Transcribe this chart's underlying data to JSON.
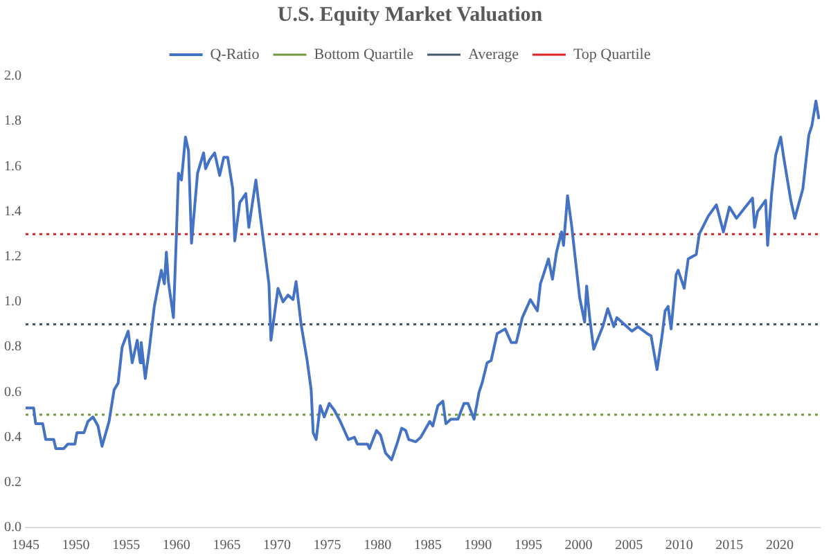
{
  "chart_data": {
    "type": "line",
    "title": "U.S. Equity Market Valuation",
    "legend": "top",
    "grid": false,
    "marker": "none",
    "line_style": "solid",
    "xlim": [
      1945,
      2024
    ],
    "xticks": [
      1945,
      1950,
      1955,
      1960,
      1965,
      1970,
      1975,
      1980,
      1985,
      1990,
      1995,
      2000,
      2005,
      2010,
      2015,
      2020
    ],
    "ylim": [
      0,
      2
    ],
    "yticks": [
      {
        "value": 0,
        "label": "0.0"
      },
      {
        "value": 0.2,
        "label": "0.2"
      },
      {
        "value": 0.4,
        "label": "0.4"
      },
      {
        "value": 0.6,
        "label": "0.6"
      },
      {
        "value": 0.8,
        "label": "0.8"
      },
      {
        "value": 1,
        "label": "1.0"
      },
      {
        "value": 1.2,
        "label": "1.2"
      },
      {
        "value": 1.4,
        "label": "1.4"
      },
      {
        "value": 1.6,
        "label": "1.6"
      },
      {
        "value": 1.8,
        "label": "1.8"
      },
      {
        "value": 2,
        "label": "2.0"
      }
    ],
    "series": [
      {
        "name": "Q-Ratio",
        "color": "#4472c4",
        "x": [
          1945.0,
          1945.8,
          1946.0,
          1946.7,
          1947.0,
          1947.8,
          1948.0,
          1948.8,
          1949.2,
          1949.9,
          1950.1,
          1950.8,
          1951.2,
          1951.7,
          1952.2,
          1952.6,
          1953.3,
          1953.8,
          1954.2,
          1954.6,
          1955.2,
          1955.6,
          1956.1,
          1956.4,
          1956.5,
          1956.9,
          1957.3,
          1957.8,
          1958.1,
          1958.5,
          1958.8,
          1959.0,
          1959.2,
          1959.7,
          1960.0,
          1960.2,
          1960.5,
          1960.9,
          1961.2,
          1961.5,
          1962.1,
          1962.7,
          1962.9,
          1963.3,
          1963.8,
          1964.3,
          1964.7,
          1965.1,
          1965.6,
          1965.8,
          1966.3,
          1966.9,
          1967.2,
          1967.5,
          1967.9,
          1968.4,
          1969.2,
          1969.4,
          1970.1,
          1970.6,
          1971.1,
          1971.6,
          1971.9,
          1972.4,
          1973.0,
          1973.4,
          1973.6,
          1973.9,
          1974.3,
          1974.7,
          1975.2,
          1975.7,
          1976.3,
          1977.1,
          1977.7,
          1978.0,
          1979.0,
          1979.2,
          1979.9,
          1980.3,
          1980.8,
          1981.4,
          1982.0,
          1982.4,
          1982.8,
          1983.1,
          1983.8,
          1984.3,
          1985.2,
          1985.5,
          1986.0,
          1986.5,
          1986.8,
          1987.3,
          1988.0,
          1988.6,
          1989.0,
          1989.6,
          1990.1,
          1990.4,
          1990.9,
          1991.3,
          1991.9,
          1992.7,
          1993.3,
          1993.8,
          1994.4,
          1995.2,
          1995.9,
          1996.2,
          1996.5,
          1997.0,
          1997.4,
          1997.8,
          1998.3,
          1998.5,
          1998.9,
          1999.3,
          2000.1,
          2000.6,
          2000.8,
          2001.1,
          2001.5,
          2002.4,
          2002.9,
          2003.5,
          2003.8,
          2004.8,
          2005.3,
          2005.9,
          2006.8,
          2007.2,
          2007.8,
          2008.3,
          2008.6,
          2008.9,
          2009.2,
          2009.7,
          2009.9,
          2010.5,
          2010.9,
          2011.7,
          2012.0,
          2012.9,
          2013.7,
          2014.4,
          2015.0,
          2015.7,
          2017.3,
          2017.5,
          2017.8,
          2018.6,
          2018.8,
          2019.2,
          2019.6,
          2020.1,
          2020.4,
          2021.1,
          2021.5,
          2022.3,
          2022.9,
          2023.2,
          2023.6,
          2023.9
        ],
        "values": [
          0.53,
          0.53,
          0.46,
          0.46,
          0.39,
          0.39,
          0.35,
          0.35,
          0.37,
          0.37,
          0.42,
          0.42,
          0.47,
          0.49,
          0.45,
          0.36,
          0.47,
          0.61,
          0.64,
          0.8,
          0.87,
          0.73,
          0.83,
          0.73,
          0.82,
          0.66,
          0.79,
          0.98,
          1.05,
          1.14,
          1.08,
          1.22,
          1.09,
          0.93,
          1.3,
          1.57,
          1.54,
          1.73,
          1.67,
          1.26,
          1.57,
          1.66,
          1.59,
          1.63,
          1.66,
          1.56,
          1.64,
          1.64,
          1.5,
          1.27,
          1.44,
          1.48,
          1.33,
          1.42,
          1.54,
          1.36,
          1.08,
          0.83,
          1.06,
          1.0,
          1.03,
          1.01,
          1.09,
          0.9,
          0.74,
          0.61,
          0.42,
          0.39,
          0.54,
          0.49,
          0.55,
          0.52,
          0.47,
          0.39,
          0.4,
          0.37,
          0.37,
          0.35,
          0.43,
          0.41,
          0.33,
          0.3,
          0.38,
          0.44,
          0.43,
          0.39,
          0.38,
          0.4,
          0.47,
          0.45,
          0.54,
          0.56,
          0.46,
          0.48,
          0.48,
          0.55,
          0.55,
          0.48,
          0.6,
          0.64,
          0.73,
          0.74,
          0.86,
          0.88,
          0.82,
          0.82,
          0.93,
          1.01,
          0.96,
          1.08,
          1.12,
          1.19,
          1.1,
          1.22,
          1.31,
          1.25,
          1.47,
          1.34,
          1.02,
          0.91,
          1.07,
          0.93,
          0.79,
          0.89,
          0.97,
          0.89,
          0.93,
          0.89,
          0.87,
          0.89,
          0.86,
          0.85,
          0.7,
          0.85,
          0.96,
          0.98,
          0.88,
          1.12,
          1.14,
          1.06,
          1.19,
          1.21,
          1.3,
          1.38,
          1.43,
          1.31,
          1.42,
          1.37,
          1.46,
          1.33,
          1.4,
          1.45,
          1.25,
          1.48,
          1.65,
          1.73,
          1.64,
          1.45,
          1.37,
          1.5,
          1.74,
          1.78,
          1.89,
          1.81
        ]
      }
    ],
    "ref_lines": [
      {
        "axis": "y",
        "value": 0.5,
        "label": "Bottom Quartile",
        "color": "#6f9a3c",
        "line_style": "dotted"
      },
      {
        "axis": "y",
        "value": 0.9,
        "label": "Average",
        "color": "#44546a",
        "line_style": "dotted"
      },
      {
        "axis": "y",
        "value": 1.3,
        "label": "Top Quartile",
        "color": "#e02020",
        "line_style": "dotted"
      }
    ]
  }
}
